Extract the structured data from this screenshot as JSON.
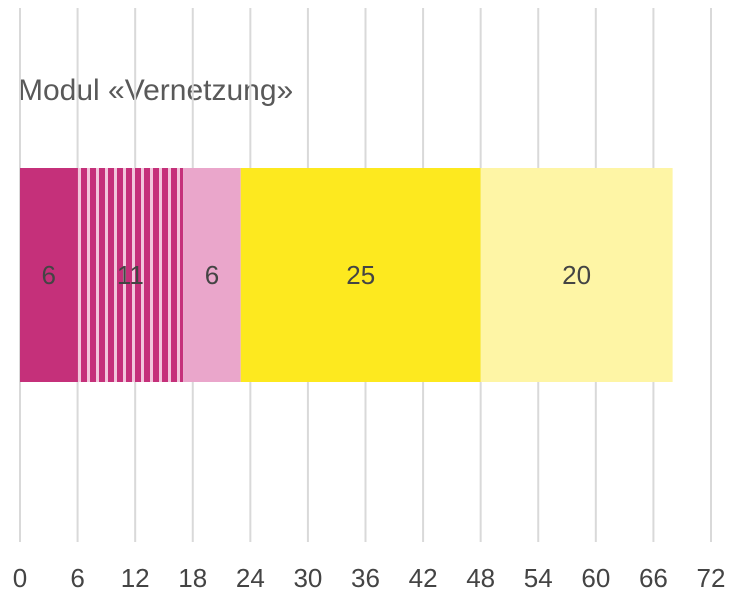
{
  "chart_data": {
    "type": "stacked-bar",
    "orientation": "horizontal",
    "title": "Modul «Vernetzung»",
    "series": [
      {
        "color": "#c5307a",
        "values": [
          6
        ]
      },
      {
        "color": "#c5307a",
        "pattern": "vertical-stripes",
        "values": [
          11
        ]
      },
      {
        "color": "#eaa6cb",
        "values": [
          6
        ]
      },
      {
        "color": "#fde91f",
        "values": [
          25
        ]
      },
      {
        "color": "#fef5a5",
        "values": [
          20
        ]
      }
    ],
    "xlim": [
      0,
      72
    ],
    "xticks": [
      0,
      6,
      12,
      18,
      24,
      30,
      36,
      42,
      48,
      54,
      60,
      66,
      72
    ],
    "grid": true
  }
}
